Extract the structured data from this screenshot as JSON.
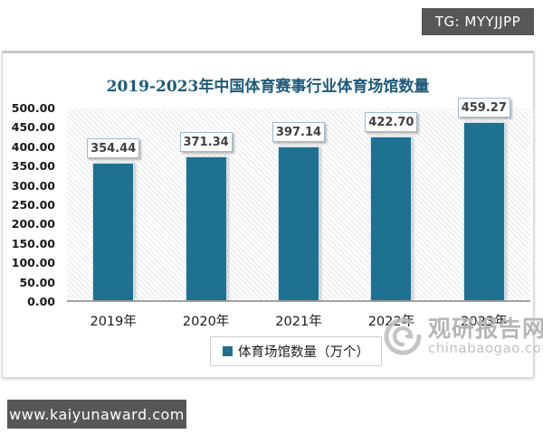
{
  "page": {
    "top_badge": "TG: MYYJJPP",
    "bottom_badge": "www.kaiyunaward.com"
  },
  "chart_data": {
    "type": "bar",
    "title": "2019-2023年中国体育赛事行业体育场馆数量",
    "categories": [
      "2019年",
      "2020年",
      "2021年",
      "2022年",
      "2023年"
    ],
    "series": [
      {
        "name": "体育场馆数量（万个）",
        "values": [
          354.44,
          371.34,
          397.14,
          422.7,
          459.27
        ]
      }
    ],
    "value_labels": [
      "354.44",
      "371.34",
      "397.14",
      "422.70",
      "459.27"
    ],
    "yticks": [
      "500.00",
      "450.00",
      "400.00",
      "350.00",
      "300.00",
      "250.00",
      "200.00",
      "150.00",
      "100.00",
      "50.00",
      "0.00"
    ],
    "ylim": [
      0,
      500
    ],
    "grid": false,
    "legend_position": "bottom",
    "bar_color": "#1F7192",
    "title_color": "#1E5A7A"
  },
  "watermark": {
    "site_name": "观研报告网",
    "site_url": "chinabaogao.com"
  }
}
